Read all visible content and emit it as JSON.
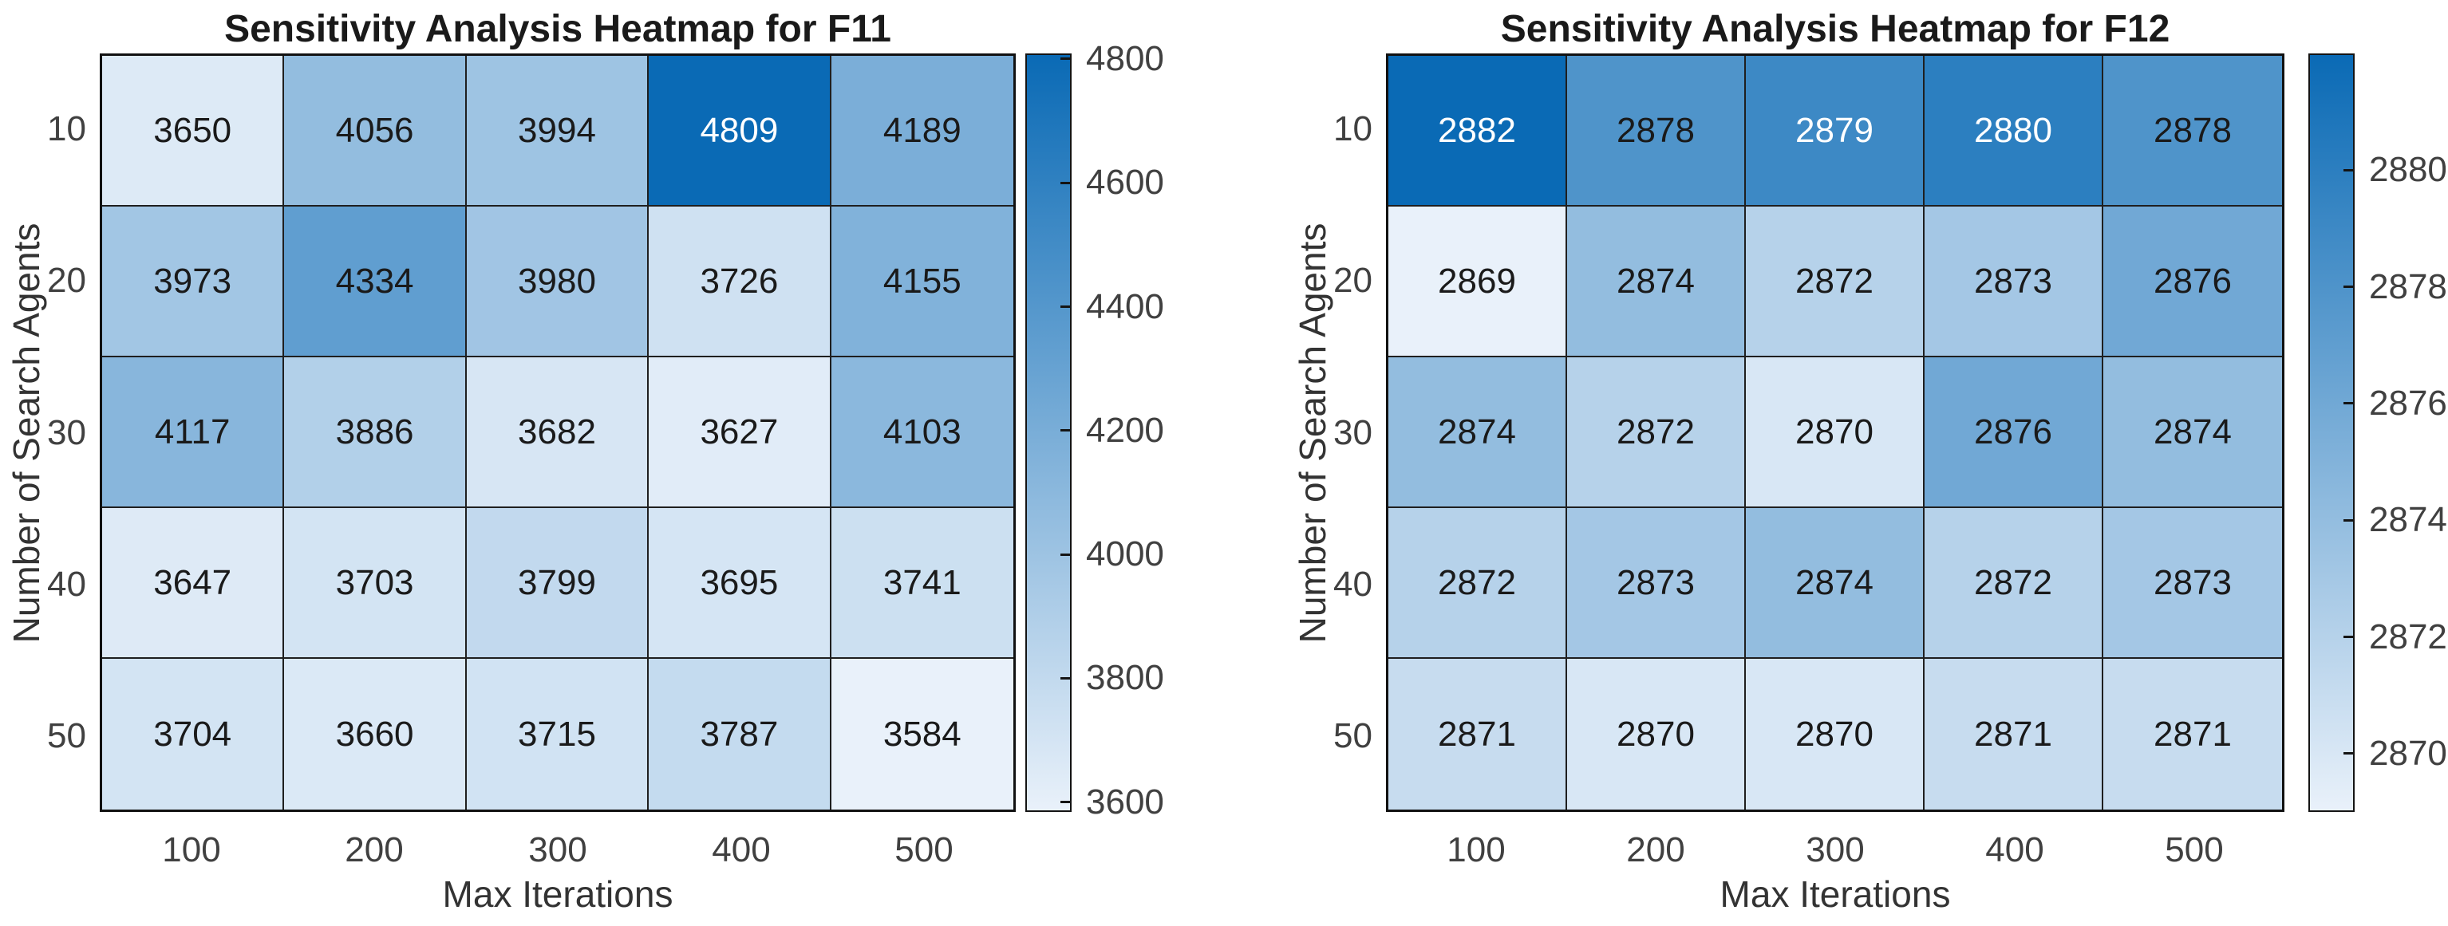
{
  "chart_data": [
    {
      "type": "heatmap",
      "title": "Sensitivity Analysis Heatmap for F11",
      "xlabel": "Max Iterations",
      "ylabel": "Number of Search Agents",
      "x_categories": [
        "100",
        "200",
        "300",
        "400",
        "500"
      ],
      "y_categories": [
        "10",
        "20",
        "30",
        "40",
        "50"
      ],
      "values": [
        [
          3650,
          4056,
          3994,
          4809,
          4189
        ],
        [
          3973,
          4334,
          3980,
          3726,
          4155
        ],
        [
          4117,
          3886,
          3682,
          3627,
          4103
        ],
        [
          3647,
          3703,
          3799,
          3695,
          3741
        ],
        [
          3704,
          3660,
          3715,
          3787,
          3584
        ]
      ],
      "vmin": 3584,
      "vmax": 4809,
      "colorbar_ticks": [
        4800,
        4600,
        4400,
        4200,
        4000,
        3800,
        3600
      ],
      "light_text_values": [
        4809
      ],
      "colormap": "blues",
      "colorbar_position": "right",
      "grid": true
    },
    {
      "type": "heatmap",
      "title": "Sensitivity Analysis Heatmap for F12",
      "xlabel": "Max Iterations",
      "ylabel": "Number of Search Agents",
      "x_categories": [
        "100",
        "200",
        "300",
        "400",
        "500"
      ],
      "y_categories": [
        "10",
        "20",
        "30",
        "40",
        "50"
      ],
      "values": [
        [
          2882,
          2878,
          2879,
          2880,
          2878
        ],
        [
          2869,
          2874,
          2872,
          2873,
          2876
        ],
        [
          2874,
          2872,
          2870,
          2876,
          2874
        ],
        [
          2872,
          2873,
          2874,
          2872,
          2873
        ],
        [
          2871,
          2870,
          2870,
          2871,
          2871
        ]
      ],
      "vmin": 2869,
      "vmax": 2882,
      "colorbar_ticks": [
        2880,
        2878,
        2876,
        2874,
        2872,
        2870
      ],
      "light_text_values": [
        2882,
        2879,
        2880
      ],
      "colormap": "blues",
      "colorbar_position": "right",
      "grid": true
    }
  ],
  "colors": {
    "colormap_low": "#e9f1fa",
    "colormap_high": "#0a6ab5",
    "cell_text_dark": "#1a1a1a",
    "cell_text_light": "#ffffff",
    "tick_label": "#404040",
    "axis_label": "#333333",
    "title": "#1a1a1a",
    "grid_line": "#1f1f1f",
    "background": "#ffffff"
  }
}
